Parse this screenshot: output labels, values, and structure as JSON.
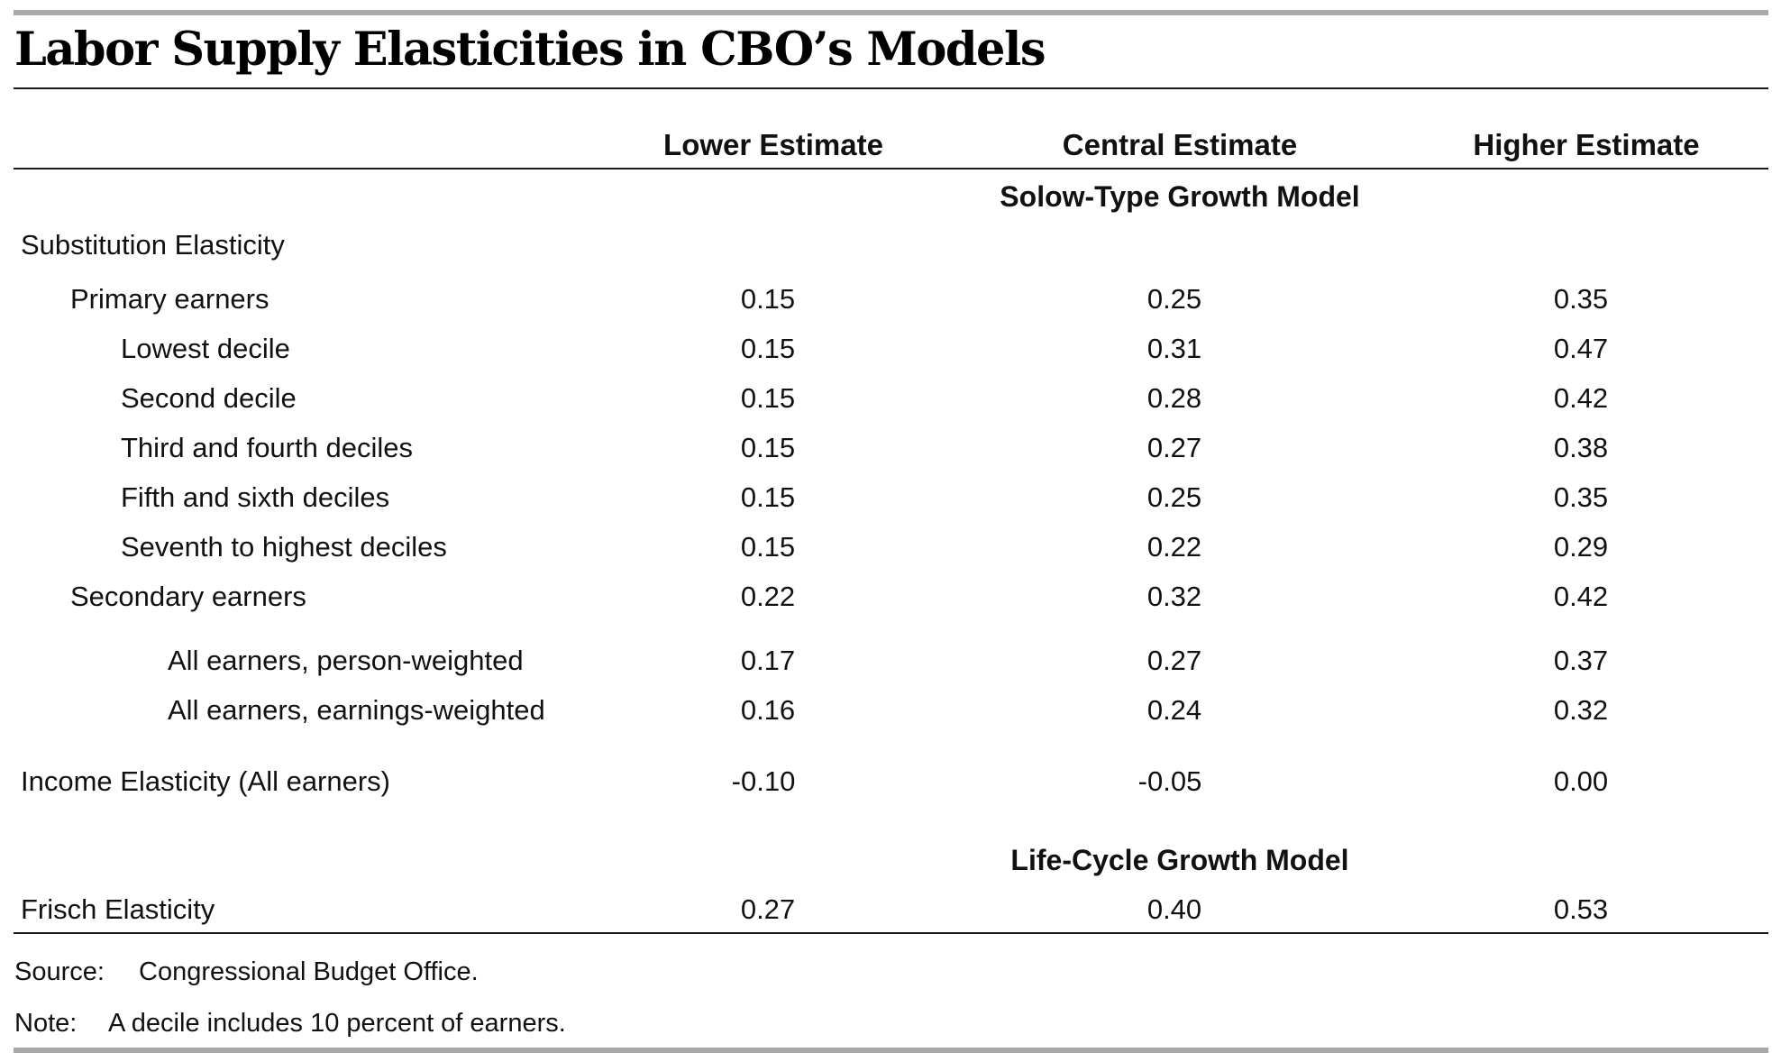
{
  "title": "Labor Supply Elasticities in CBO’s Models",
  "columns": [
    "Lower Estimate",
    "Central Estimate",
    "Higher Estimate"
  ],
  "sections": [
    {
      "heading": "Solow-Type Growth Model",
      "rows": [
        {
          "label": "Substitution Elasticity",
          "values": [
            "",
            "",
            ""
          ]
        },
        {
          "label": "Primary earners",
          "values": [
            "0.15",
            "0.25",
            "0.35"
          ]
        },
        {
          "label": "Lowest decile",
          "values": [
            "0.15",
            "0.31",
            "0.47"
          ]
        },
        {
          "label": "Second decile",
          "values": [
            "0.15",
            "0.28",
            "0.42"
          ]
        },
        {
          "label": "Third and fourth deciles",
          "values": [
            "0.15",
            "0.27",
            "0.38"
          ]
        },
        {
          "label": "Fifth and sixth deciles",
          "values": [
            "0.15",
            "0.25",
            "0.35"
          ]
        },
        {
          "label": "Seventh to highest deciles",
          "values": [
            "0.15",
            "0.22",
            "0.29"
          ]
        },
        {
          "label": "Secondary earners",
          "values": [
            "0.22",
            "0.32",
            "0.42"
          ]
        },
        {
          "label": "All earners, person-weighted",
          "values": [
            "0.17",
            "0.27",
            "0.37"
          ]
        },
        {
          "label": "All earners, earnings-weighted",
          "values": [
            "0.16",
            "0.24",
            "0.32"
          ]
        },
        {
          "label": "Income Elasticity (All earners)",
          "values": [
            "-0.10",
            "-0.05",
            "0.00"
          ]
        }
      ]
    },
    {
      "heading": "Life-Cycle Growth Model",
      "rows": [
        {
          "label": "Frisch Elasticity",
          "values": [
            "0.27",
            "0.40",
            "0.53"
          ]
        }
      ]
    }
  ],
  "source": {
    "label": "Source:",
    "text": "Congressional Budget Office."
  },
  "note": {
    "label": "Note:",
    "text": "A decile includes 10 percent of earners."
  }
}
